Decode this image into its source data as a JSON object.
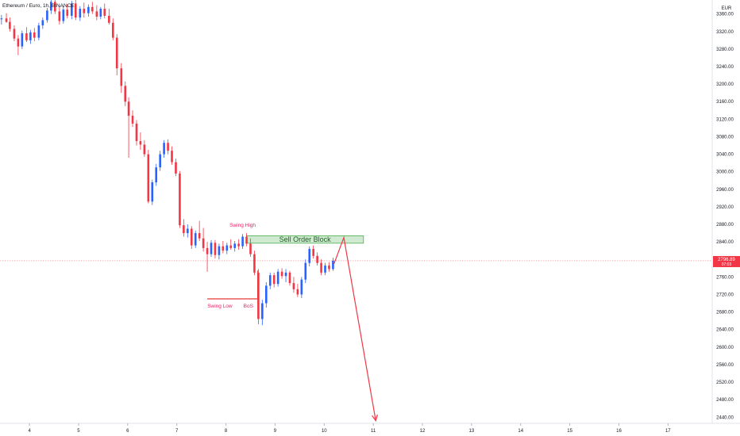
{
  "header": {
    "symbol_title": "Ethereum / Euro, 1h, BINANCE"
  },
  "price_axis": {
    "currency": "EUR",
    "ticks": [
      "3360.00",
      "3320.00",
      "3280.00",
      "3240.00",
      "3200.00",
      "3160.00",
      "3120.00",
      "3080.00",
      "3040.00",
      "3000.00",
      "2960.00",
      "2920.00",
      "2880.00",
      "2840.00",
      "2800.00",
      "2760.00",
      "2720.00",
      "2680.00",
      "2640.00",
      "2600.00",
      "2560.00",
      "2520.00",
      "2480.00",
      "2440.00"
    ],
    "last_price_label": "2796.89",
    "countdown_label": "07:03"
  },
  "time_axis": {
    "ticks": [
      "4",
      "5",
      "6",
      "7",
      "8",
      "9",
      "10",
      "11",
      "12",
      "13",
      "14",
      "15",
      "16",
      "17"
    ]
  },
  "annotations": {
    "swing_high": "Swing High",
    "swing_low": "Swing Low",
    "bos": "BoS",
    "sell_order_block": "Sell Order Block"
  },
  "colors": {
    "up": "#2962ff",
    "down": "#f23645",
    "zone_fill": "#c8e6c9",
    "zone_border": "#4caf50",
    "arrow": "#f23645",
    "last_price_bg": "#f23645"
  },
  "chart_data": {
    "type": "candlestick",
    "instrument": "Ethereum / Euro",
    "timeframe": "1h",
    "exchange": "BINANCE",
    "currency": "EUR",
    "x_range": [
      3.4,
      17.9
    ],
    "y_range": [
      2426,
      3392
    ],
    "last_price": 2796.89,
    "candles": [
      {
        "d": 3.43,
        "o": 3348,
        "h": 3358,
        "l": 3336,
        "c": 3350
      },
      {
        "d": 3.53,
        "o": 3350,
        "h": 3362,
        "l": 3340,
        "c": 3342
      },
      {
        "d": 3.6,
        "o": 3342,
        "h": 3352,
        "l": 3320,
        "c": 3326
      },
      {
        "d": 3.69,
        "o": 3326,
        "h": 3334,
        "l": 3298,
        "c": 3304
      },
      {
        "d": 3.77,
        "o": 3304,
        "h": 3312,
        "l": 3266,
        "c": 3286
      },
      {
        "d": 3.85,
        "o": 3286,
        "h": 3322,
        "l": 3280,
        "c": 3316
      },
      {
        "d": 3.94,
        "o": 3316,
        "h": 3330,
        "l": 3296,
        "c": 3300
      },
      {
        "d": 4.02,
        "o": 3300,
        "h": 3324,
        "l": 3292,
        "c": 3318
      },
      {
        "d": 4.1,
        "o": 3318,
        "h": 3328,
        "l": 3298,
        "c": 3306
      },
      {
        "d": 4.19,
        "o": 3306,
        "h": 3340,
        "l": 3300,
        "c": 3334
      },
      {
        "d": 4.27,
        "o": 3334,
        "h": 3352,
        "l": 3326,
        "c": 3346
      },
      {
        "d": 4.36,
        "o": 3346,
        "h": 3374,
        "l": 3340,
        "c": 3368
      },
      {
        "d": 4.44,
        "o": 3368,
        "h": 3394,
        "l": 3360,
        "c": 3388
      },
      {
        "d": 4.52,
        "o": 3388,
        "h": 3396,
        "l": 3360,
        "c": 3366
      },
      {
        "d": 4.61,
        "o": 3366,
        "h": 3380,
        "l": 3336,
        "c": 3344
      },
      {
        "d": 4.69,
        "o": 3344,
        "h": 3378,
        "l": 3338,
        "c": 3370
      },
      {
        "d": 4.77,
        "o": 3370,
        "h": 3382,
        "l": 3350,
        "c": 3356
      },
      {
        "d": 4.86,
        "o": 3356,
        "h": 3390,
        "l": 3348,
        "c": 3384
      },
      {
        "d": 4.94,
        "o": 3384,
        "h": 3394,
        "l": 3346,
        "c": 3352
      },
      {
        "d": 5.03,
        "o": 3352,
        "h": 3378,
        "l": 3344,
        "c": 3372
      },
      {
        "d": 5.11,
        "o": 3372,
        "h": 3386,
        "l": 3352,
        "c": 3362
      },
      {
        "d": 5.2,
        "o": 3362,
        "h": 3382,
        "l": 3354,
        "c": 3376
      },
      {
        "d": 5.28,
        "o": 3376,
        "h": 3388,
        "l": 3360,
        "c": 3366
      },
      {
        "d": 5.37,
        "o": 3366,
        "h": 3380,
        "l": 3346,
        "c": 3354
      },
      {
        "d": 5.45,
        "o": 3354,
        "h": 3376,
        "l": 3348,
        "c": 3372
      },
      {
        "d": 5.53,
        "o": 3372,
        "h": 3384,
        "l": 3350,
        "c": 3356
      },
      {
        "d": 5.62,
        "o": 3356,
        "h": 3372,
        "l": 3336,
        "c": 3340
      },
      {
        "d": 5.7,
        "o": 3340,
        "h": 3350,
        "l": 3300,
        "c": 3306
      },
      {
        "d": 5.78,
        "o": 3306,
        "h": 3314,
        "l": 3220,
        "c": 3236
      },
      {
        "d": 5.87,
        "o": 3236,
        "h": 3248,
        "l": 3180,
        "c": 3196
      },
      {
        "d": 5.95,
        "o": 3196,
        "h": 3206,
        "l": 3150,
        "c": 3160
      },
      {
        "d": 6.02,
        "o": 3160,
        "h": 3170,
        "l": 3032,
        "c": 3128
      },
      {
        "d": 6.1,
        "o": 3128,
        "h": 3140,
        "l": 3102,
        "c": 3110
      },
      {
        "d": 6.18,
        "o": 3110,
        "h": 3118,
        "l": 3060,
        "c": 3070
      },
      {
        "d": 6.26,
        "o": 3070,
        "h": 3090,
        "l": 3050,
        "c": 3062
      },
      {
        "d": 6.34,
        "o": 3062,
        "h": 3072,
        "l": 3034,
        "c": 3040
      },
      {
        "d": 6.42,
        "o": 3040,
        "h": 3050,
        "l": 2928,
        "c": 2932
      },
      {
        "d": 6.5,
        "o": 2932,
        "h": 2982,
        "l": 2924,
        "c": 2976
      },
      {
        "d": 6.58,
        "o": 2976,
        "h": 3018,
        "l": 2968,
        "c": 3010
      },
      {
        "d": 6.66,
        "o": 3010,
        "h": 3048,
        "l": 3002,
        "c": 3040
      },
      {
        "d": 6.74,
        "o": 3040,
        "h": 3072,
        "l": 3032,
        "c": 3066
      },
      {
        "d": 6.82,
        "o": 3066,
        "h": 3074,
        "l": 3040,
        "c": 3048
      },
      {
        "d": 6.9,
        "o": 3048,
        "h": 3058,
        "l": 3016,
        "c": 3022
      },
      {
        "d": 6.98,
        "o": 3022,
        "h": 3030,
        "l": 2990,
        "c": 2996
      },
      {
        "d": 7.06,
        "o": 2996,
        "h": 3002,
        "l": 2872,
        "c": 2878
      },
      {
        "d": 7.14,
        "o": 2878,
        "h": 2892,
        "l": 2852,
        "c": 2860
      },
      {
        "d": 7.22,
        "o": 2860,
        "h": 2880,
        "l": 2850,
        "c": 2870
      },
      {
        "d": 7.3,
        "o": 2870,
        "h": 2876,
        "l": 2824,
        "c": 2832
      },
      {
        "d": 7.38,
        "o": 2832,
        "h": 2866,
        "l": 2826,
        "c": 2860
      },
      {
        "d": 7.46,
        "o": 2860,
        "h": 2888,
        "l": 2842,
        "c": 2848
      },
      {
        "d": 7.54,
        "o": 2848,
        "h": 2872,
        "l": 2818,
        "c": 2826
      },
      {
        "d": 7.62,
        "o": 2826,
        "h": 2840,
        "l": 2772,
        "c": 2812
      },
      {
        "d": 7.7,
        "o": 2812,
        "h": 2844,
        "l": 2806,
        "c": 2838
      },
      {
        "d": 7.78,
        "o": 2838,
        "h": 2844,
        "l": 2802,
        "c": 2810
      },
      {
        "d": 7.86,
        "o": 2810,
        "h": 2836,
        "l": 2800,
        "c": 2830
      },
      {
        "d": 7.94,
        "o": 2830,
        "h": 2842,
        "l": 2814,
        "c": 2820
      },
      {
        "d": 8.02,
        "o": 2820,
        "h": 2838,
        "l": 2812,
        "c": 2832
      },
      {
        "d": 8.1,
        "o": 2832,
        "h": 2846,
        "l": 2822,
        "c": 2826
      },
      {
        "d": 8.18,
        "o": 2826,
        "h": 2842,
        "l": 2818,
        "c": 2836
      },
      {
        "d": 8.26,
        "o": 2836,
        "h": 2846,
        "l": 2822,
        "c": 2830
      },
      {
        "d": 8.34,
        "o": 2830,
        "h": 2858,
        "l": 2824,
        "c": 2852
      },
      {
        "d": 8.42,
        "o": 2852,
        "h": 2860,
        "l": 2830,
        "c": 2836
      },
      {
        "d": 8.5,
        "o": 2836,
        "h": 2848,
        "l": 2806,
        "c": 2812
      },
      {
        "d": 8.58,
        "o": 2812,
        "h": 2820,
        "l": 2764,
        "c": 2770
      },
      {
        "d": 8.66,
        "o": 2770,
        "h": 2778,
        "l": 2652,
        "c": 2664
      },
      {
        "d": 8.74,
        "o": 2664,
        "h": 2708,
        "l": 2650,
        "c": 2700
      },
      {
        "d": 8.82,
        "o": 2700,
        "h": 2748,
        "l": 2690,
        "c": 2740
      },
      {
        "d": 8.9,
        "o": 2740,
        "h": 2770,
        "l": 2732,
        "c": 2764
      },
      {
        "d": 8.98,
        "o": 2764,
        "h": 2770,
        "l": 2736,
        "c": 2744
      },
      {
        "d": 9.06,
        "o": 2744,
        "h": 2778,
        "l": 2738,
        "c": 2772
      },
      {
        "d": 9.14,
        "o": 2772,
        "h": 2780,
        "l": 2756,
        "c": 2762
      },
      {
        "d": 9.22,
        "o": 2762,
        "h": 2778,
        "l": 2748,
        "c": 2770
      },
      {
        "d": 9.3,
        "o": 2770,
        "h": 2774,
        "l": 2740,
        "c": 2746
      },
      {
        "d": 9.38,
        "o": 2746,
        "h": 2760,
        "l": 2724,
        "c": 2732
      },
      {
        "d": 9.46,
        "o": 2732,
        "h": 2744,
        "l": 2714,
        "c": 2720
      },
      {
        "d": 9.54,
        "o": 2720,
        "h": 2760,
        "l": 2712,
        "c": 2754
      },
      {
        "d": 9.62,
        "o": 2754,
        "h": 2800,
        "l": 2746,
        "c": 2792
      },
      {
        "d": 9.7,
        "o": 2792,
        "h": 2830,
        "l": 2784,
        "c": 2824
      },
      {
        "d": 9.78,
        "o": 2824,
        "h": 2832,
        "l": 2802,
        "c": 2808
      },
      {
        "d": 9.86,
        "o": 2808,
        "h": 2816,
        "l": 2786,
        "c": 2792
      },
      {
        "d": 9.94,
        "o": 2792,
        "h": 2800,
        "l": 2764,
        "c": 2770
      },
      {
        "d": 10.02,
        "o": 2770,
        "h": 2792,
        "l": 2764,
        "c": 2786
      },
      {
        "d": 10.1,
        "o": 2786,
        "h": 2794,
        "l": 2772,
        "c": 2778
      },
      {
        "d": 10.18,
        "o": 2778,
        "h": 2804,
        "l": 2774,
        "c": 2797
      }
    ],
    "zones": [
      {
        "label": "Sell Order Block",
        "x0": 8.42,
        "x1": 10.8,
        "y0": 2837,
        "y1": 2854
      }
    ],
    "levels": [
      {
        "label": "Swing Low",
        "y": 2710,
        "x0": 7.62,
        "x1": 8.65
      },
      {
        "label": "Swing High",
        "y": 2858,
        "x": 8.34
      }
    ],
    "bos": {
      "label": "BoS",
      "x": 8.65,
      "y0": 2710,
      "y1": 2775
    },
    "projection": [
      {
        "x": 10.2,
        "y": 2790
      },
      {
        "x": 10.4,
        "y": 2850
      },
      {
        "x": 11.05,
        "y": 2432
      }
    ]
  }
}
